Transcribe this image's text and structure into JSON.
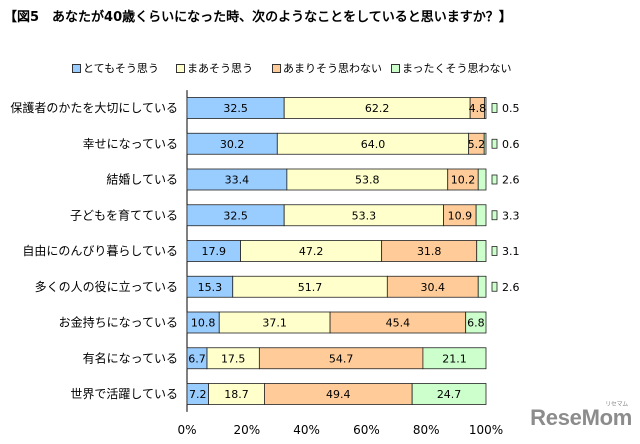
{
  "chart_data": {
    "type": "bar",
    "orientation": "horizontal",
    "stacking": "percent",
    "title": "【図5　あなたが40歳くらいになった時、次のようなことをしていると思いますか？】",
    "categories": [
      "保護者のかたを大切にしている",
      "幸せになっている",
      "結婚している",
      "子どもを育てている",
      "自由にのんびり暮らしている",
      "多くの人の役に立っている",
      "お金持ちになっている",
      "有名になっている",
      "世界で活躍している"
    ],
    "series": [
      {
        "name": "とてもそう思う",
        "color": "#99ccff",
        "values": [
          32.5,
          30.2,
          33.4,
          32.5,
          17.9,
          15.3,
          10.8,
          6.7,
          7.2
        ]
      },
      {
        "name": "まあそう思う",
        "color": "#ffffcc",
        "values": [
          62.2,
          64.0,
          53.8,
          53.3,
          47.2,
          51.7,
          37.1,
          17.5,
          18.7
        ]
      },
      {
        "name": "あまりそう思わない",
        "color": "#ffcc99",
        "values": [
          4.8,
          5.2,
          10.2,
          10.9,
          31.8,
          30.4,
          45.4,
          54.7,
          49.4
        ]
      },
      {
        "name": "まったくそう思わない",
        "color": "#ccffcc",
        "values": [
          0.5,
          0.6,
          2.6,
          3.3,
          3.1,
          2.6,
          6.8,
          21.1,
          24.7
        ]
      }
    ],
    "xlim": [
      0,
      100
    ],
    "xticks": [
      0,
      20,
      40,
      60,
      80,
      100
    ],
    "xtick_labels": [
      "0%",
      "20%",
      "40%",
      "60%",
      "80%",
      "100%"
    ],
    "grid": false,
    "legend": "top"
  },
  "logo": {
    "text": "ReseMom",
    "subtext": "リセマム"
  }
}
